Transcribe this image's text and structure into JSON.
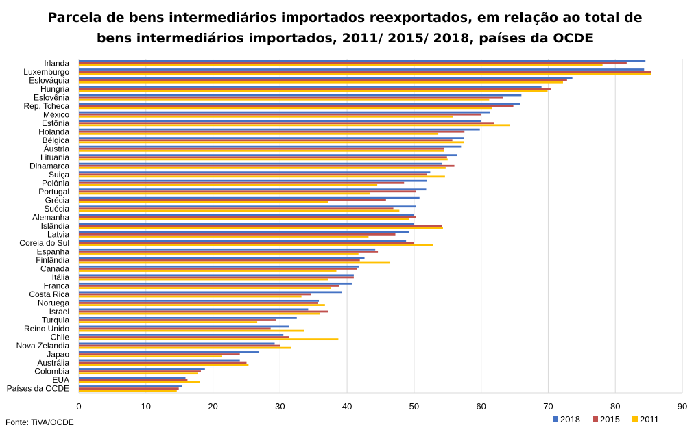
{
  "chart_data": {
    "type": "bar",
    "orientation": "horizontal",
    "title_line1": "Parcela de bens intermediários importados reexportados, em relação ao total de",
    "title_line2": "bens intermediários importados, 2011/ 2015/ 2018, países da OCDE",
    "source": "Fonte: TiVA/OCDE",
    "xlim": [
      0,
      90
    ],
    "x_ticks": [
      0,
      10,
      20,
      30,
      40,
      50,
      60,
      70,
      80,
      90
    ],
    "grid": true,
    "legend_position": "bottom-right",
    "categories": [
      "Irlanda",
      "Luxemburgo",
      "Eslováquia",
      "Hungria",
      "Eslovênia",
      "Rep. Tcheca",
      "México",
      "Estônia",
      "Holanda",
      "Bélgica",
      "Áustria",
      "Lituania",
      "Dinamarca",
      "Suiça",
      "Polônia",
      "Portugal",
      "Grécia",
      "Suécia",
      "Alemanha",
      "Islândia",
      "Latvia",
      "Coreia do Sul",
      "Espanha",
      "Finlândia",
      "Canadá",
      "Itália",
      "Franca",
      "Costa Rica",
      "Noruega",
      "Israel",
      "Turquia",
      "Reino Unido",
      "Chile",
      "Nova Zelandia",
      "Japao",
      "Austrália",
      "Colombia",
      "EUA",
      "Países da OCDE"
    ],
    "series": [
      {
        "name": "2018",
        "color": "#4472C4",
        "values": [
          84.5,
          84.3,
          73.6,
          69.0,
          66.0,
          65.8,
          61.3,
          60.0,
          59.8,
          57.4,
          57.0,
          56.4,
          54.2,
          52.4,
          51.9,
          51.8,
          50.8,
          50.3,
          50.0,
          50.0,
          49.2,
          48.8,
          44.2,
          42.6,
          41.8,
          41.0,
          40.7,
          39.2,
          35.8,
          34.2,
          32.5,
          31.3,
          30.5,
          29.2,
          26.9,
          24.0,
          18.8,
          15.9,
          15.4
        ]
      },
      {
        "name": "2015",
        "color": "#C0504D",
        "values": [
          81.7,
          85.3,
          72.8,
          70.4,
          63.3,
          64.8,
          60.0,
          61.9,
          57.5,
          55.7,
          54.5,
          54.9,
          56.0,
          51.9,
          48.5,
          50.3,
          45.8,
          46.9,
          50.3,
          54.2,
          47.2,
          50.0,
          44.6,
          41.9,
          41.5,
          41.0,
          38.8,
          34.6,
          35.6,
          37.2,
          29.4,
          28.6,
          31.3,
          30.0,
          24.0,
          25.0,
          18.2,
          16.2,
          14.9
        ]
      },
      {
        "name": "2011",
        "color": "#FFC000",
        "values": [
          78.1,
          85.3,
          72.2,
          69.9,
          61.2,
          61.6,
          55.8,
          64.3,
          53.6,
          57.4,
          54.5,
          55.0,
          54.7,
          54.6,
          44.5,
          43.4,
          37.2,
          47.8,
          49.2,
          54.3,
          43.2,
          52.8,
          41.7,
          46.4,
          38.4,
          37.2,
          37.6,
          33.2,
          36.7,
          36.0,
          26.6,
          33.6,
          38.7,
          31.6,
          21.3,
          25.3,
          17.7,
          18.1,
          14.6
        ]
      }
    ]
  }
}
